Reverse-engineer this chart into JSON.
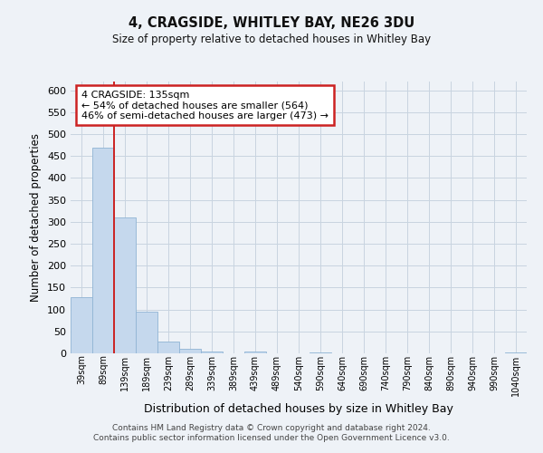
{
  "title": "4, CRAGSIDE, WHITLEY BAY, NE26 3DU",
  "subtitle": "Size of property relative to detached houses in Whitley Bay",
  "xlabel": "Distribution of detached houses by size in Whitley Bay",
  "ylabel": "Number of detached properties",
  "footer_lines": [
    "Contains HM Land Registry data © Crown copyright and database right 2024.",
    "Contains public sector information licensed under the Open Government Licence v3.0."
  ],
  "bin_labels": [
    "39sqm",
    "89sqm",
    "139sqm",
    "189sqm",
    "239sqm",
    "289sqm",
    "339sqm",
    "389sqm",
    "439sqm",
    "489sqm",
    "540sqm",
    "590sqm",
    "640sqm",
    "690sqm",
    "740sqm",
    "790sqm",
    "840sqm",
    "890sqm",
    "940sqm",
    "990sqm",
    "1040sqm"
  ],
  "bar_values": [
    128,
    470,
    311,
    95,
    26,
    10,
    5,
    0,
    4,
    0,
    0,
    2,
    0,
    0,
    0,
    0,
    0,
    0,
    0,
    0,
    3
  ],
  "bar_color": "#c5d8ed",
  "bar_edge_color": "#90b4d4",
  "grid_color": "#c8d4e0",
  "red_line_x": 2,
  "annotation_title": "4 CRAGSIDE: 135sqm",
  "annotation_line1": "← 54% of detached houses are smaller (564)",
  "annotation_line2": "46% of semi-detached houses are larger (473) →",
  "annotation_box_facecolor": "#ffffff",
  "annotation_border_color": "#cc2222",
  "ylim": [
    0,
    620
  ],
  "yticks": [
    0,
    50,
    100,
    150,
    200,
    250,
    300,
    350,
    400,
    450,
    500,
    550,
    600
  ],
  "background_color": "#eef2f7"
}
